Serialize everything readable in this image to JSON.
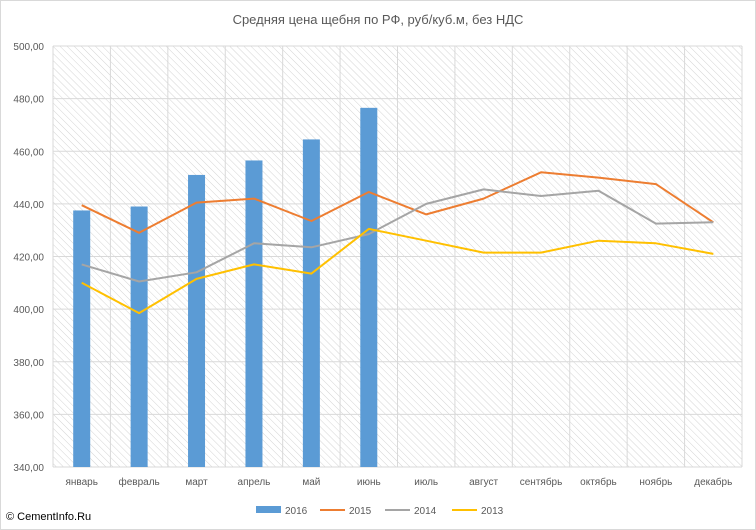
{
  "chart_data": {
    "type": "bar+line",
    "title": "Средняя цена щебня по РФ, руб/куб.м, без НДС",
    "categories": [
      "январь",
      "февраль",
      "март",
      "апрель",
      "май",
      "июнь",
      "июль",
      "август",
      "сентябрь",
      "октябрь",
      "ноябрь",
      "декабрь"
    ],
    "ylim": [
      340,
      500
    ],
    "yticks": [
      "340,00",
      "360,00",
      "380,00",
      "400,00",
      "420,00",
      "440,00",
      "460,00",
      "480,00",
      "500,00"
    ],
    "ytick_values": [
      340,
      360,
      380,
      400,
      420,
      440,
      460,
      480,
      500
    ],
    "grid": true,
    "legend_position": "bottom",
    "series": [
      {
        "name": "2016",
        "kind": "bar",
        "color": "#5b9bd5",
        "values": [
          437.5,
          439,
          451,
          456.5,
          464.5,
          476.5,
          null,
          null,
          null,
          null,
          null,
          null
        ]
      },
      {
        "name": "2015",
        "kind": "line",
        "color": "#ed7d31",
        "values": [
          439.5,
          429,
          440.5,
          442,
          433.5,
          444.5,
          436,
          442,
          452,
          450,
          447.5,
          433
        ]
      },
      {
        "name": "2014",
        "kind": "line",
        "color": "#a5a5a5",
        "values": [
          417,
          410.5,
          414,
          425,
          423.5,
          428.5,
          440,
          445.5,
          443,
          445,
          432.5,
          433
        ]
      },
      {
        "name": "2013",
        "kind": "line",
        "color": "#ffc000",
        "values": [
          410,
          398.5,
          411.5,
          417,
          413.5,
          430.5,
          426,
          421.5,
          421.5,
          426,
          425,
          421
        ]
      }
    ]
  },
  "footer": {
    "watermark": "© CementInfo.Ru"
  }
}
